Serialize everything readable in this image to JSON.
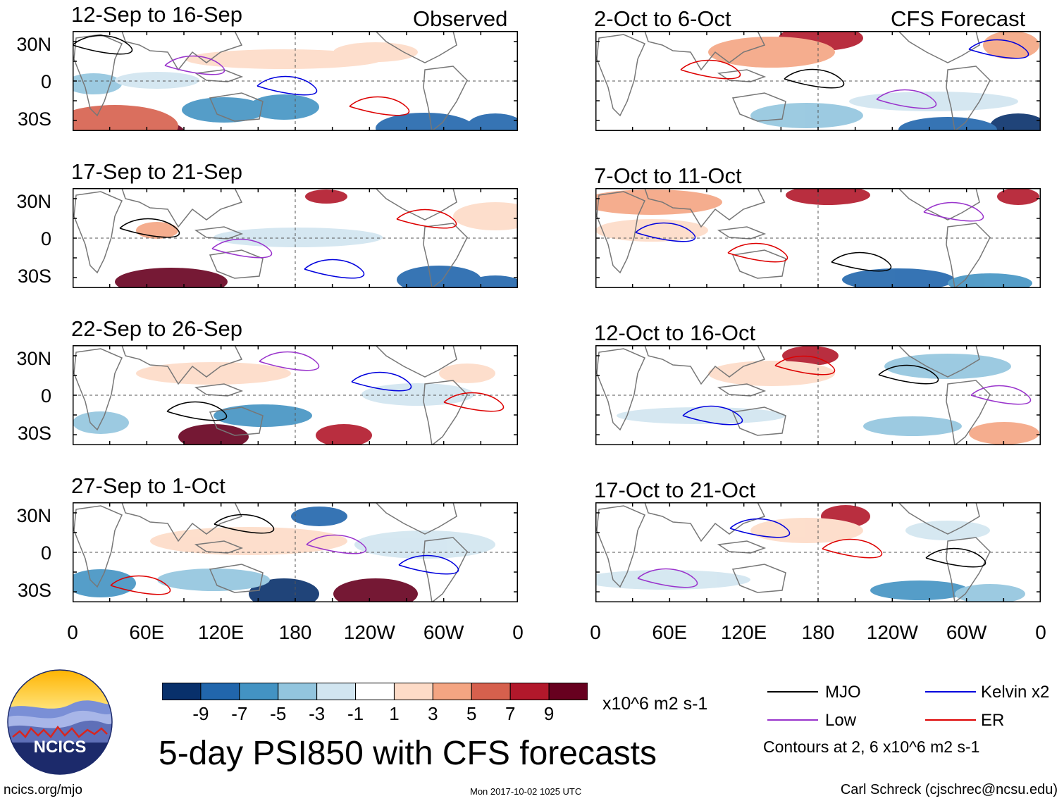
{
  "observed_label": "Observed",
  "forecast_label": "CFS Forecast",
  "panels": [
    {
      "title": "12-Sep to 16-Sep",
      "column": "observed"
    },
    {
      "title": "17-Sep to 21-Sep",
      "column": "observed"
    },
    {
      "title": "22-Sep to 26-Sep",
      "column": "observed"
    },
    {
      "title": "27-Sep to 1-Oct",
      "column": "observed"
    },
    {
      "title": "2-Oct to 6-Oct",
      "column": "forecast"
    },
    {
      "title": "7-Oct to 11-Oct",
      "column": "forecast"
    },
    {
      "title": "12-Oct to 16-Oct",
      "column": "forecast"
    },
    {
      "title": "17-Oct to 21-Oct",
      "column": "forecast"
    }
  ],
  "y_ticks": [
    "30N",
    "0",
    "30S"
  ],
  "x_ticks": [
    "0",
    "60E",
    "120E",
    "180",
    "120W",
    "60W",
    "0"
  ],
  "colorbar": {
    "colors": [
      "#08306b",
      "#2166ac",
      "#4393c3",
      "#92c5de",
      "#d1e5f0",
      "#ffffff",
      "#fddbc7",
      "#f4a582",
      "#d6604d",
      "#b2182b",
      "#67001f"
    ],
    "labels": [
      "-9",
      "-7",
      "-5",
      "-3",
      "-1",
      "1",
      "3",
      "5",
      "7",
      "9"
    ],
    "units": "x10^6 m2 s-1"
  },
  "legend": [
    {
      "label": "MJO",
      "color": "#000000"
    },
    {
      "label": "Low",
      "color": "#9933cc"
    },
    {
      "label": "Kelvin x2",
      "color": "#0000dd"
    },
    {
      "label": "ER",
      "color": "#dd0000"
    }
  ],
  "contour_note": "Contours at 2, 6 x10^6 m2 s-1",
  "title": "5-day PSI850 with CFS forecasts",
  "logo_text": "NCICS",
  "footer": {
    "left": "ncics.org/mjo",
    "middle": "Mon 2017-10-02 1025 UTC",
    "right": "Carl Schreck (cjschrec@ncsu.edu)"
  }
}
